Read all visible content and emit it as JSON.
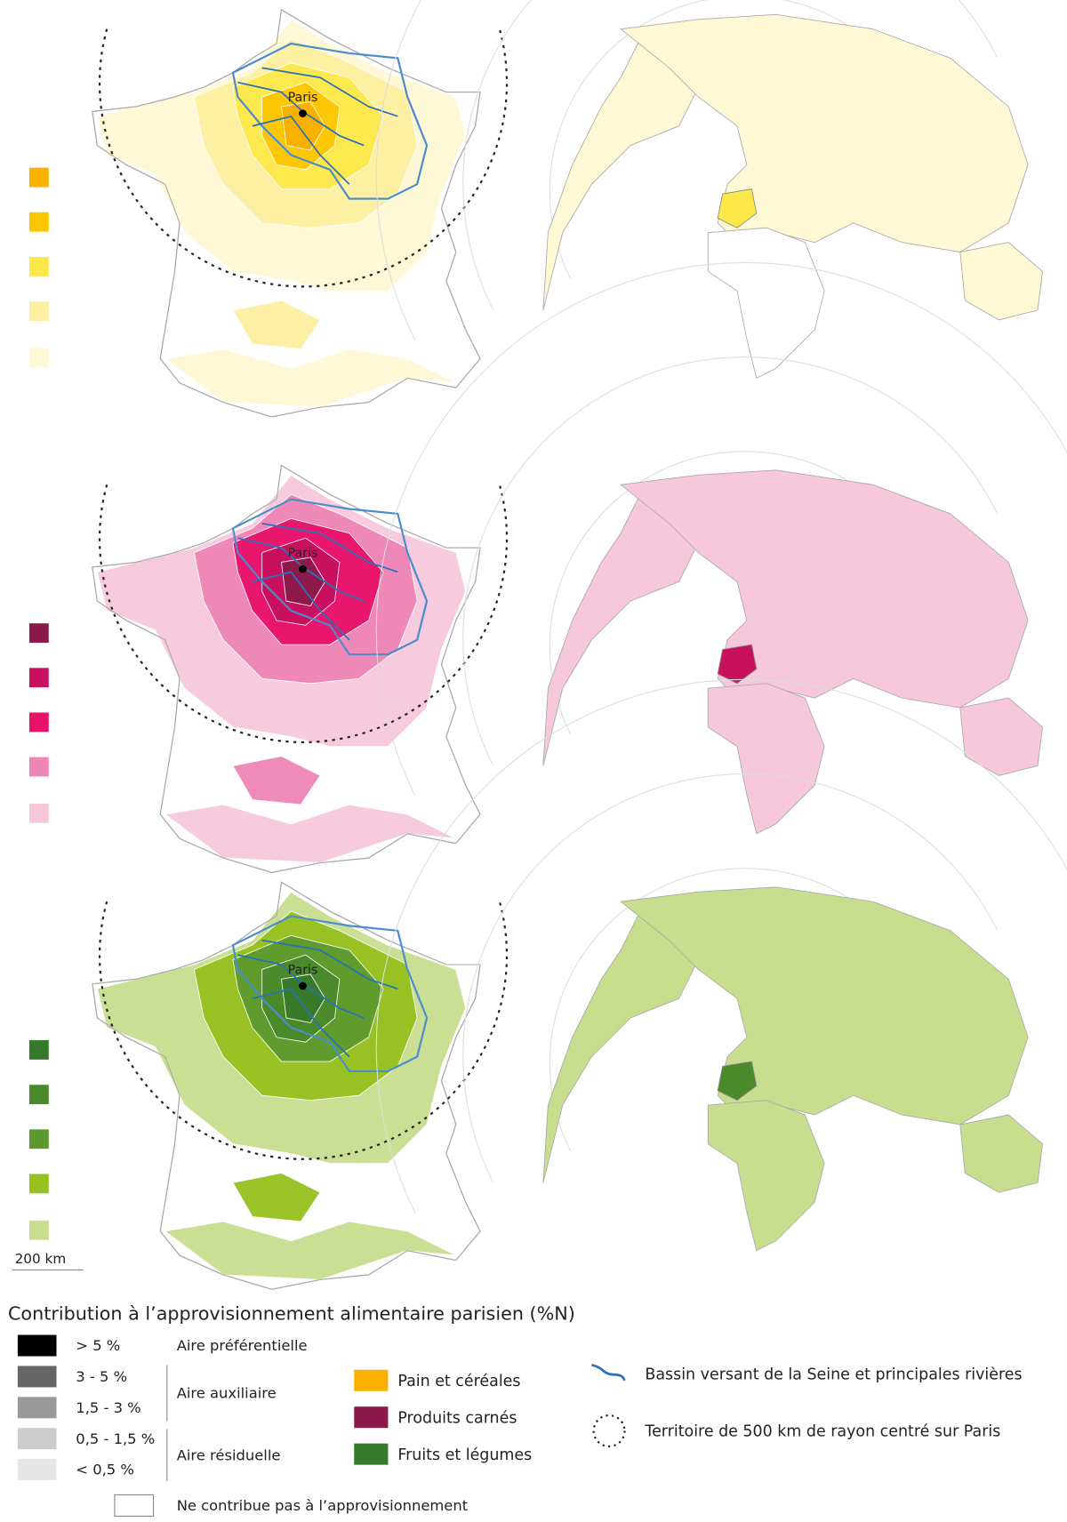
{
  "maps": [
    {
      "paris": "Paris"
    },
    {
      "paris": "Paris"
    },
    {
      "paris": "Paris"
    }
  ],
  "scale_bar": "200 km",
  "legend": {
    "title": "Contribution à l’approvisionnement alimentaire parisien (%N)",
    "classes": [
      "> 5 %",
      "3 - 5 %",
      "1,5 - 3 %",
      "0,5 - 1,5 %",
      "< 0,5 %"
    ],
    "zones": [
      "Aire préférentielle",
      "Aire auxiliaire",
      "Aire résiduelle"
    ],
    "none": "Ne contribue pas à l’approvisionnement",
    "products": [
      "Pain et céréales",
      "Produits carnés",
      "Fruits et légumes"
    ],
    "river": "Bassin versant de la Seine et principales rivières",
    "radius": "Territoire de 500 km de rayon centré sur Paris"
  }
}
